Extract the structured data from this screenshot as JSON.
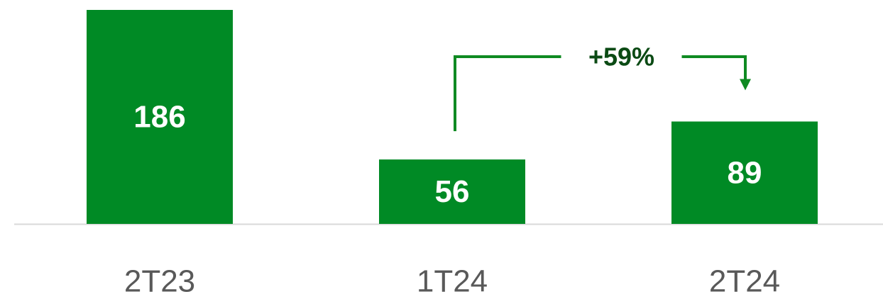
{
  "chart_data": {
    "type": "bar",
    "categories": [
      "2T23",
      "1T24",
      "2T24"
    ],
    "values": [
      186,
      56,
      89
    ],
    "color": "#008a25",
    "annotation": "+59%"
  }
}
